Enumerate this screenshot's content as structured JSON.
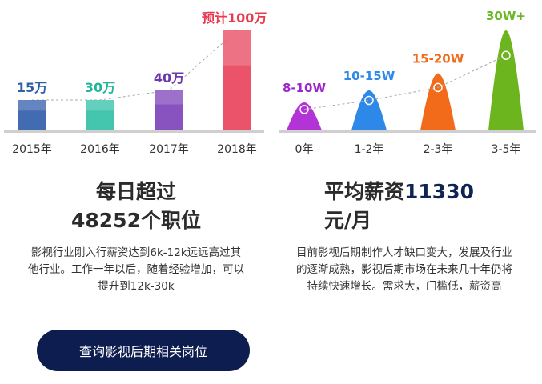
{
  "chart_data": [
    {
      "type": "bar",
      "title": "",
      "categories": [
        "2015年",
        "2016年",
        "2017年",
        "2018年"
      ],
      "values": [
        15,
        30,
        40,
        100
      ],
      "labels": [
        "15万",
        "30万",
        "40万",
        "预计100万"
      ],
      "label_colors": [
        "#3160a8",
        "#23b59a",
        "#6c3bab",
        "#e8394e"
      ],
      "bar_colors": [
        "#2e5ba8",
        "#2fbfa5",
        "#7b3fb8",
        "#e8405a"
      ],
      "trend_line": true,
      "ylim": [
        0,
        100
      ]
    },
    {
      "type": "area",
      "title": "",
      "categories": [
        "0年",
        "1-2年",
        "2-3年",
        "3-5年"
      ],
      "labels": [
        "8-10W",
        "10-15W",
        "15-20W",
        "30W+"
      ],
      "values": [
        9,
        12.5,
        17.5,
        30
      ],
      "label_colors": [
        "#9d28c9",
        "#2e8ae6",
        "#ef6d1c",
        "#6cb824"
      ],
      "shape_colors": [
        "#b233d6",
        "#2e88e8",
        "#f26b1a",
        "#6cb51f"
      ],
      "trend_line": true,
      "ylim": [
        0,
        30
      ]
    }
  ],
  "left_panel": {
    "headline_line1": "每日超过",
    "headline_line2": "48252个职位",
    "description": "影视行业刚入行薪资达到6k-12k远远高过其他行业。工作一年以后，随着经验增加，可以提升到12k-30k"
  },
  "right_panel": {
    "headline_prefix": "平均薪资",
    "headline_value": "11330",
    "headline_suffix": "元/月",
    "description": "目前影视后期制作人才缺口变大，发展及行业的逐渐成熟，影视后期市场在未来几十年仍将持续快速增长。需求大，门槛低，薪资高"
  },
  "cta": {
    "label": "查询影视后期相关岗位"
  }
}
